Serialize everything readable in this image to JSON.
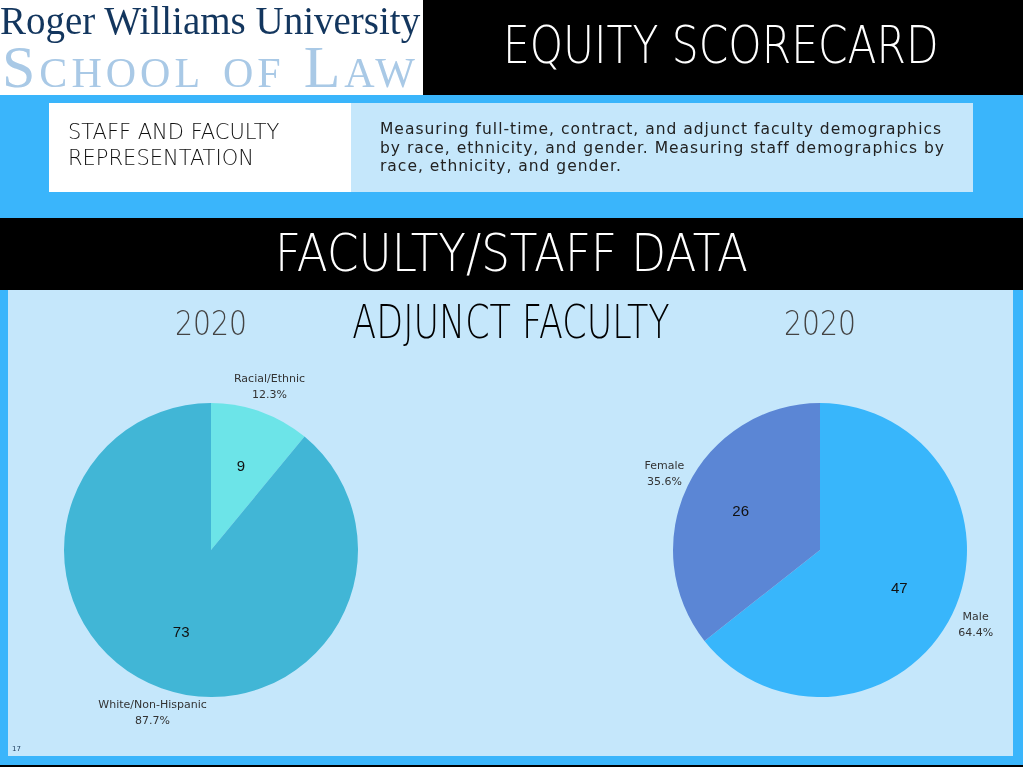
{
  "chart_data": [
    {
      "type": "other",
      "title": "EQUITY SCORECARD",
      "subtitle": "FACULTY/STAFF DATA",
      "annotations": [
        "Roger Williams University",
        "School of Law",
        "STAFF AND FACULTY REPRESENTATION",
        "Measuring full-time, contract, and adjunct faculty demographics by race, ethnicity, and gender. Measuring staff demographics by race, ethnicity, and gender.",
        "ADJUNCT FACULTY",
        "17"
      ]
    },
    {
      "type": "pie",
      "title": "2020",
      "categories": [
        "Racial/Ethnic",
        "White/Non-Hispanic"
      ],
      "values": [
        9,
        73
      ],
      "colors": [
        "#6ce4e8",
        "#41b6d6"
      ],
      "data_labels": true,
      "annotations": [
        {
          "text": "12.3%",
          "x": "Racial/Ethnic"
        },
        {
          "text": "87.7%",
          "x": "White/Non-Hispanic"
        }
      ]
    },
    {
      "type": "pie",
      "title": "2020",
      "categories": [
        "Male",
        "Female"
      ],
      "values": [
        47,
        26
      ],
      "colors": [
        "#38b6fb",
        "#5b86d5"
      ],
      "data_labels": true,
      "annotations": [
        {
          "text": "64.4%",
          "x": "Male"
        },
        {
          "text": "35.6%",
          "x": "Female"
        }
      ]
    }
  ]
}
